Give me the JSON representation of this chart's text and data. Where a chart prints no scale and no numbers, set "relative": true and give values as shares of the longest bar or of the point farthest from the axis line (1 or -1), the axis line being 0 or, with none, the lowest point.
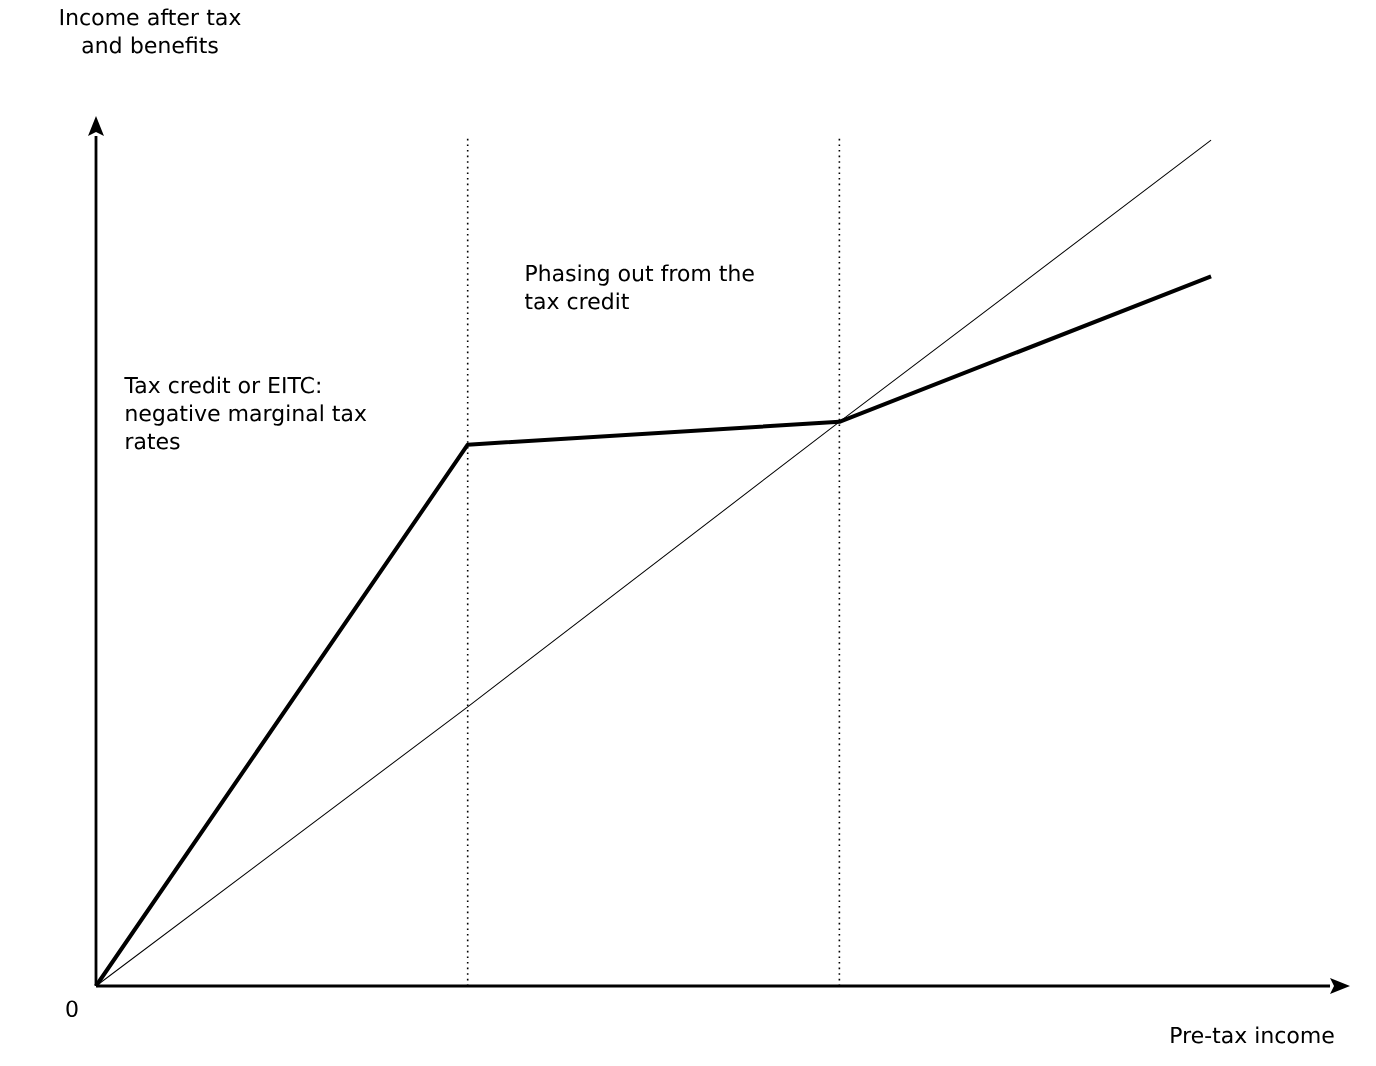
{
  "chart_data": {
    "type": "line",
    "relative": true,
    "xlabel": "Pre-tax income",
    "ylabel": "Income after tax and benefits",
    "categories": [
      null,
      null,
      null,
      null
    ],
    "series": [
      {
        "color": "#000000",
        "values": [
          0,
          0.64,
          0.667,
          0.839
        ]
      },
      {
        "color": "#000000",
        "values": [
          0,
          0.33,
          0.667,
          1
        ]
      }
    ],
    "annotations": [
      "Tax credit or EITC: negative marginal tax rates",
      "Phasing out from the tax credit",
      "0"
    ],
    "marker": "none",
    "line_style": "solid"
  }
}
